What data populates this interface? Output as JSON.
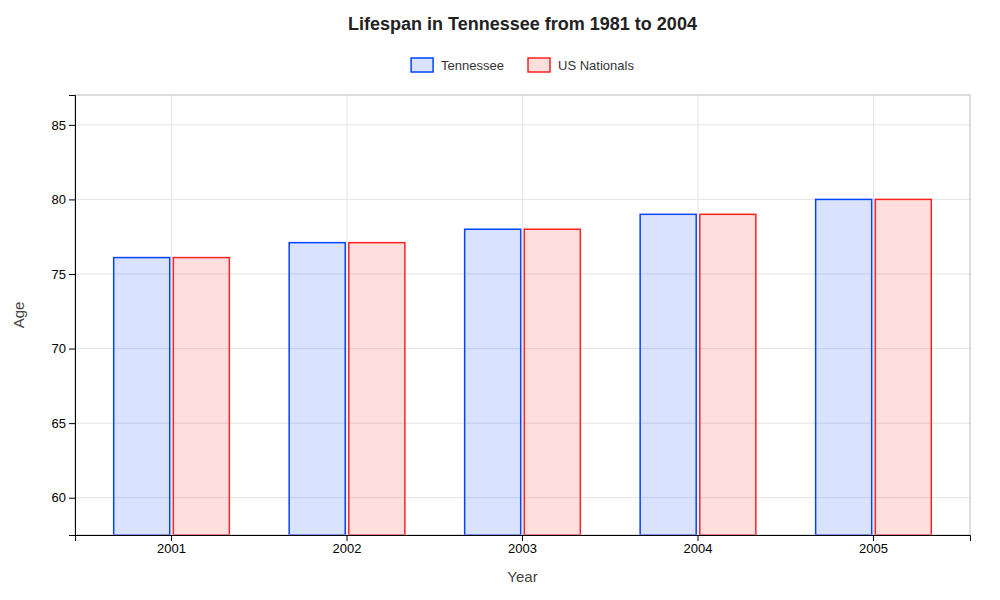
{
  "chart_data": {
    "type": "bar",
    "title": "Lifespan in Tennessee from 1981 to 2004",
    "x_label": "Year",
    "y_label": "Age",
    "categories": [
      "2001",
      "2002",
      "2003",
      "2004",
      "2005"
    ],
    "series": [
      {
        "name": "Tennessee",
        "color": "#0044ff",
        "values": [
          76.1,
          77.1,
          78.0,
          79.0,
          80.0
        ]
      },
      {
        "name": "US Nationals",
        "color": "#ff2222",
        "values": [
          76.1,
          77.1,
          78.0,
          79.0,
          80.0
        ]
      }
    ],
    "ylim": [
      57.5,
      87
    ],
    "yticks": [
      60,
      65,
      70,
      75,
      80,
      85
    ],
    "grid": true,
    "legend": "top"
  }
}
